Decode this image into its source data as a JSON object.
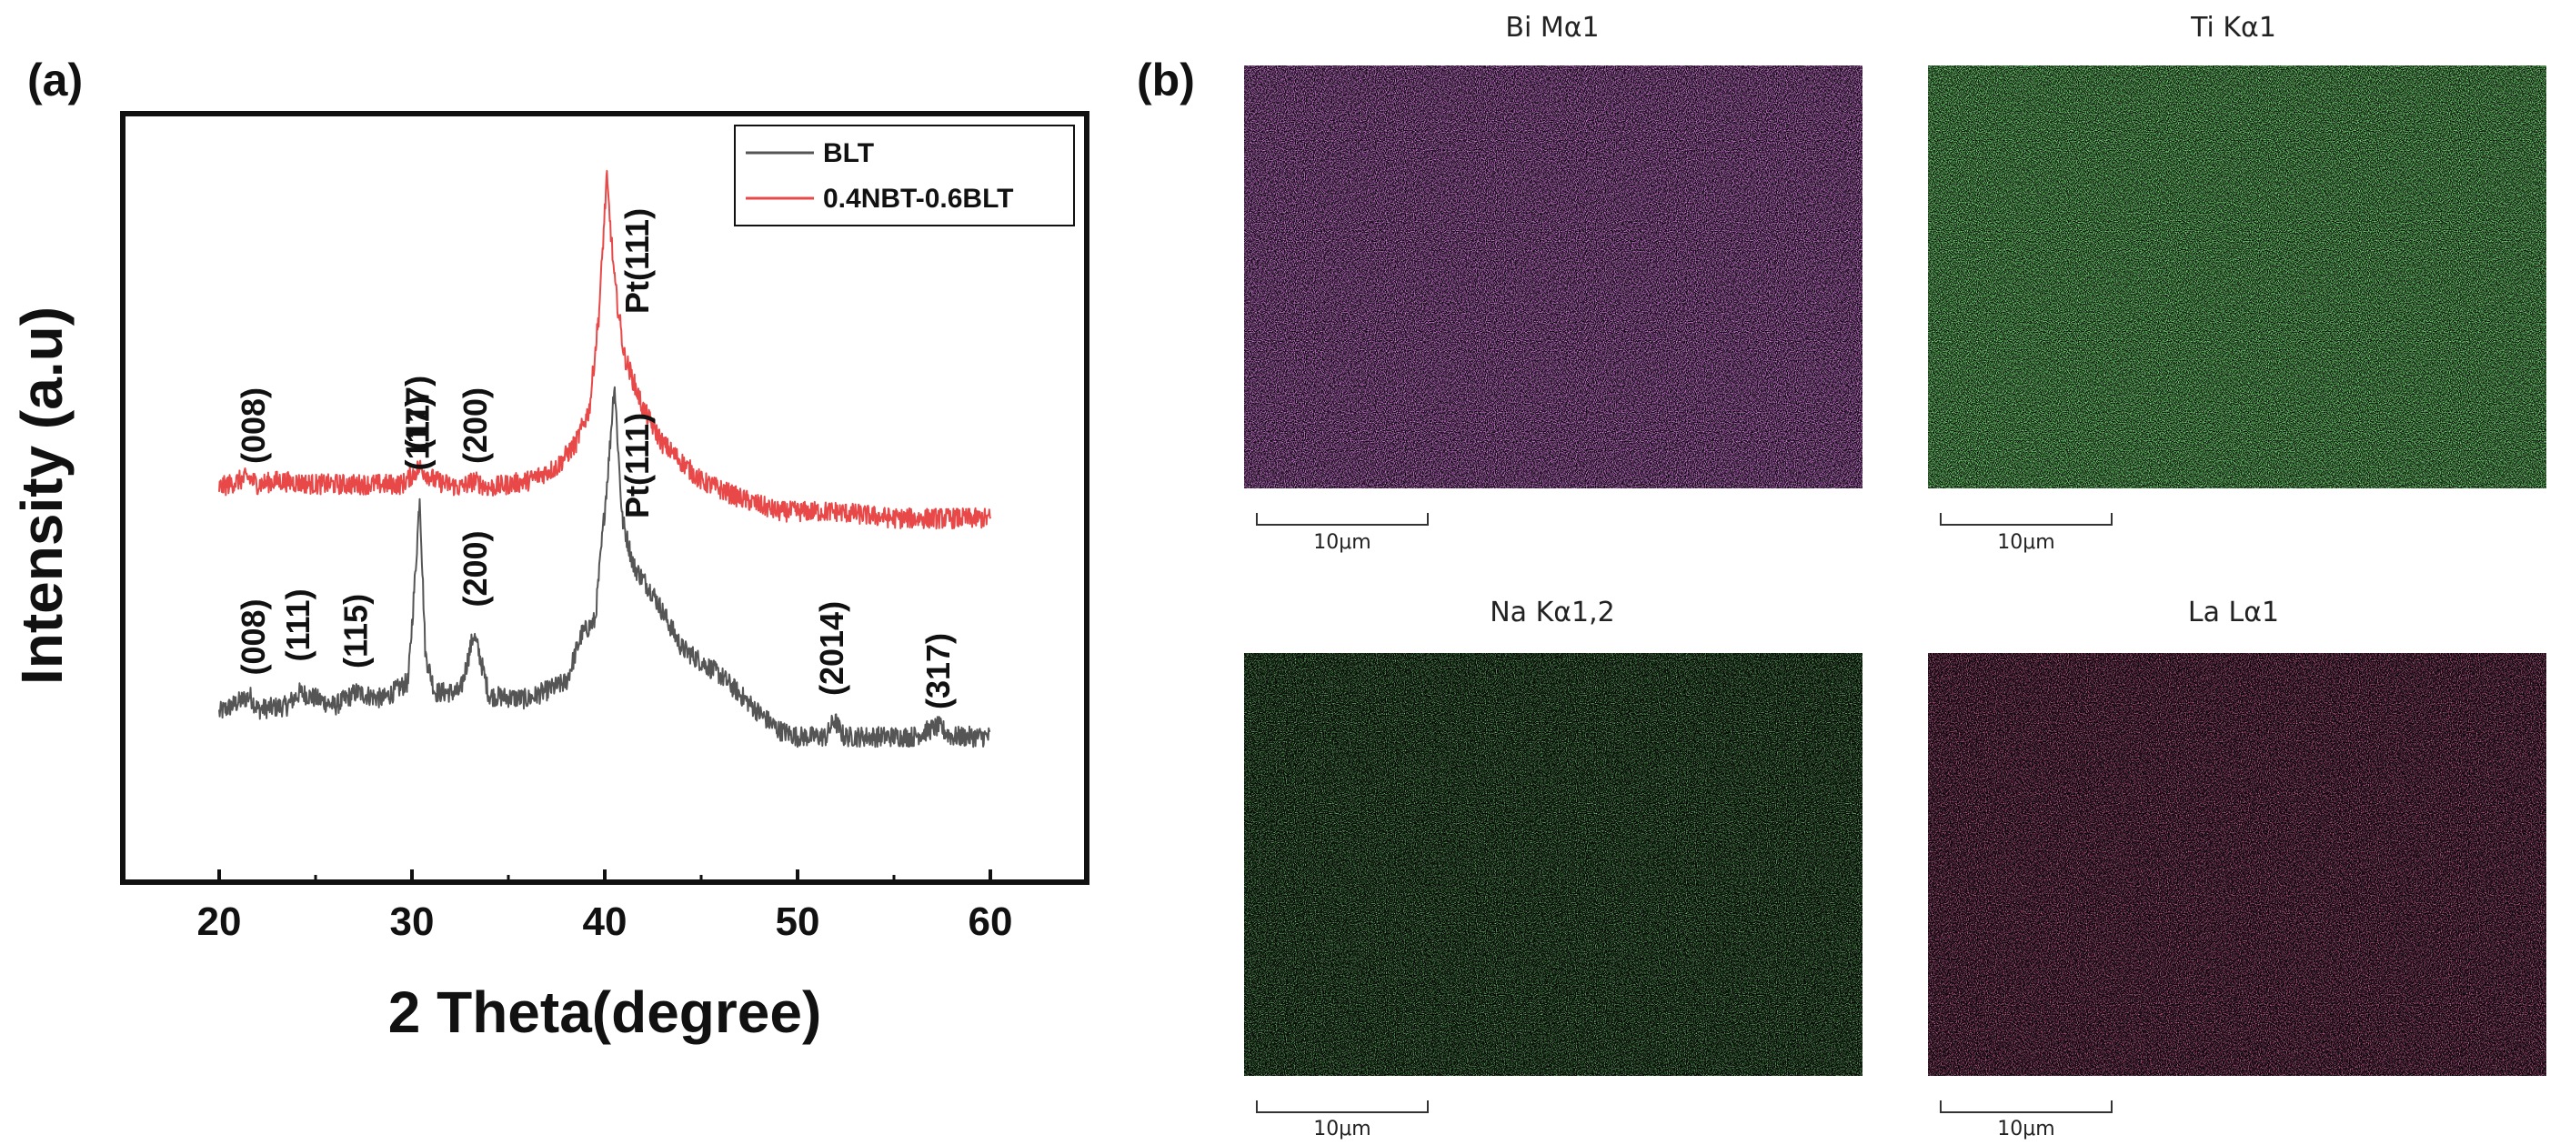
{
  "panel_a": {
    "label": "(a)",
    "chart_data": {
      "type": "line",
      "title": "",
      "xlabel": "2 Theta(degree)",
      "ylabel": "Intensity (a.u)",
      "xlim": [
        15,
        65
      ],
      "ylim": [
        0,
        1
      ],
      "x_ticks": [
        20,
        30,
        40,
        50,
        60
      ],
      "x_tick_labels": [
        "20",
        "30",
        "40",
        "50",
        "60"
      ],
      "legend_position": "top-right",
      "series": [
        {
          "name": "BLT",
          "color": "#555555",
          "x": [
            20,
            21.6,
            22,
            23.5,
            24.2,
            26,
            27.1,
            28.5,
            29.8,
            30.2,
            30.4,
            30.7,
            31.2,
            32.5,
            33.2,
            33.5,
            34,
            36,
            38,
            38.8,
            39.5,
            40.2,
            40.5,
            40.9,
            41.5,
            42.5,
            44,
            46,
            48,
            49,
            50,
            51.5,
            51.9,
            52.4,
            54,
            56,
            57.3,
            58,
            60
          ],
          "values": [
            0.215,
            0.24,
            0.22,
            0.225,
            0.245,
            0.225,
            0.245,
            0.235,
            0.26,
            0.43,
            0.535,
            0.3,
            0.245,
            0.245,
            0.33,
            0.3,
            0.24,
            0.235,
            0.26,
            0.33,
            0.35,
            0.58,
            0.7,
            0.5,
            0.43,
            0.39,
            0.31,
            0.27,
            0.215,
            0.19,
            0.18,
            0.18,
            0.205,
            0.18,
            0.18,
            0.18,
            0.195,
            0.18,
            0.18
          ]
        },
        {
          "name": "0.4NBT-0.6BLT",
          "color": "#e84848",
          "x": [
            20,
            21.5,
            22,
            23,
            25,
            28,
            29.5,
            30.4,
            31.2,
            32.5,
            33.2,
            34,
            36,
            37.5,
            38.5,
            39.2,
            39.7,
            40.1,
            40.5,
            41,
            42,
            43,
            45,
            47,
            49,
            50,
            52,
            55,
            58,
            60
          ],
          "values": [
            0.545,
            0.56,
            0.55,
            0.555,
            0.55,
            0.55,
            0.55,
            0.575,
            0.555,
            0.545,
            0.555,
            0.545,
            0.555,
            0.575,
            0.61,
            0.66,
            0.8,
            1.0,
            0.85,
            0.74,
            0.66,
            0.61,
            0.555,
            0.53,
            0.51,
            0.51,
            0.51,
            0.5,
            0.5,
            0.5
          ]
        }
      ],
      "annotations": [
        {
          "series": "0.4NBT-0.6BLT",
          "x": 21.8,
          "y": 0.58,
          "text": "(008)"
        },
        {
          "series": "0.4NBT-0.6BLT",
          "x": 30.3,
          "y": 0.6,
          "text": "(117)"
        },
        {
          "series": "0.4NBT-0.6BLT",
          "x": 33.3,
          "y": 0.58,
          "text": "(200)"
        },
        {
          "series": "0.4NBT-0.6BLT",
          "x": 41.7,
          "y": 0.8,
          "text": "Pt(111)"
        },
        {
          "series": "BLT",
          "x": 21.8,
          "y": 0.27,
          "text": "(008)"
        },
        {
          "series": "BLT",
          "x": 24.1,
          "y": 0.29,
          "text": "(111)"
        },
        {
          "series": "BLT",
          "x": 27.1,
          "y": 0.28,
          "text": "(115)"
        },
        {
          "series": "BLT",
          "x": 30.3,
          "y": 0.57,
          "text": "(117)"
        },
        {
          "series": "BLT",
          "x": 33.3,
          "y": 0.37,
          "text": "(200)"
        },
        {
          "series": "BLT",
          "x": 41.7,
          "y": 0.5,
          "text": "Pt(111)"
        },
        {
          "series": "BLT",
          "x": 51.8,
          "y": 0.24,
          "text": "(2014)"
        },
        {
          "series": "BLT",
          "x": 57.3,
          "y": 0.22,
          "text": "(317)"
        }
      ]
    }
  },
  "panel_b": {
    "label": "(b)",
    "maps": [
      {
        "title": "Bi Mα1",
        "scale_label": "10μm",
        "color": "#c03ad0"
      },
      {
        "title": "Ti Kα1",
        "scale_label": "10μm",
        "color": "#2fc22f"
      },
      {
        "title": "Na Kα1,2",
        "scale_label": "10μm",
        "color": "#2fa52f"
      },
      {
        "title": "La Lα1",
        "scale_label": "10μm",
        "color": "#c62a6a"
      }
    ]
  }
}
